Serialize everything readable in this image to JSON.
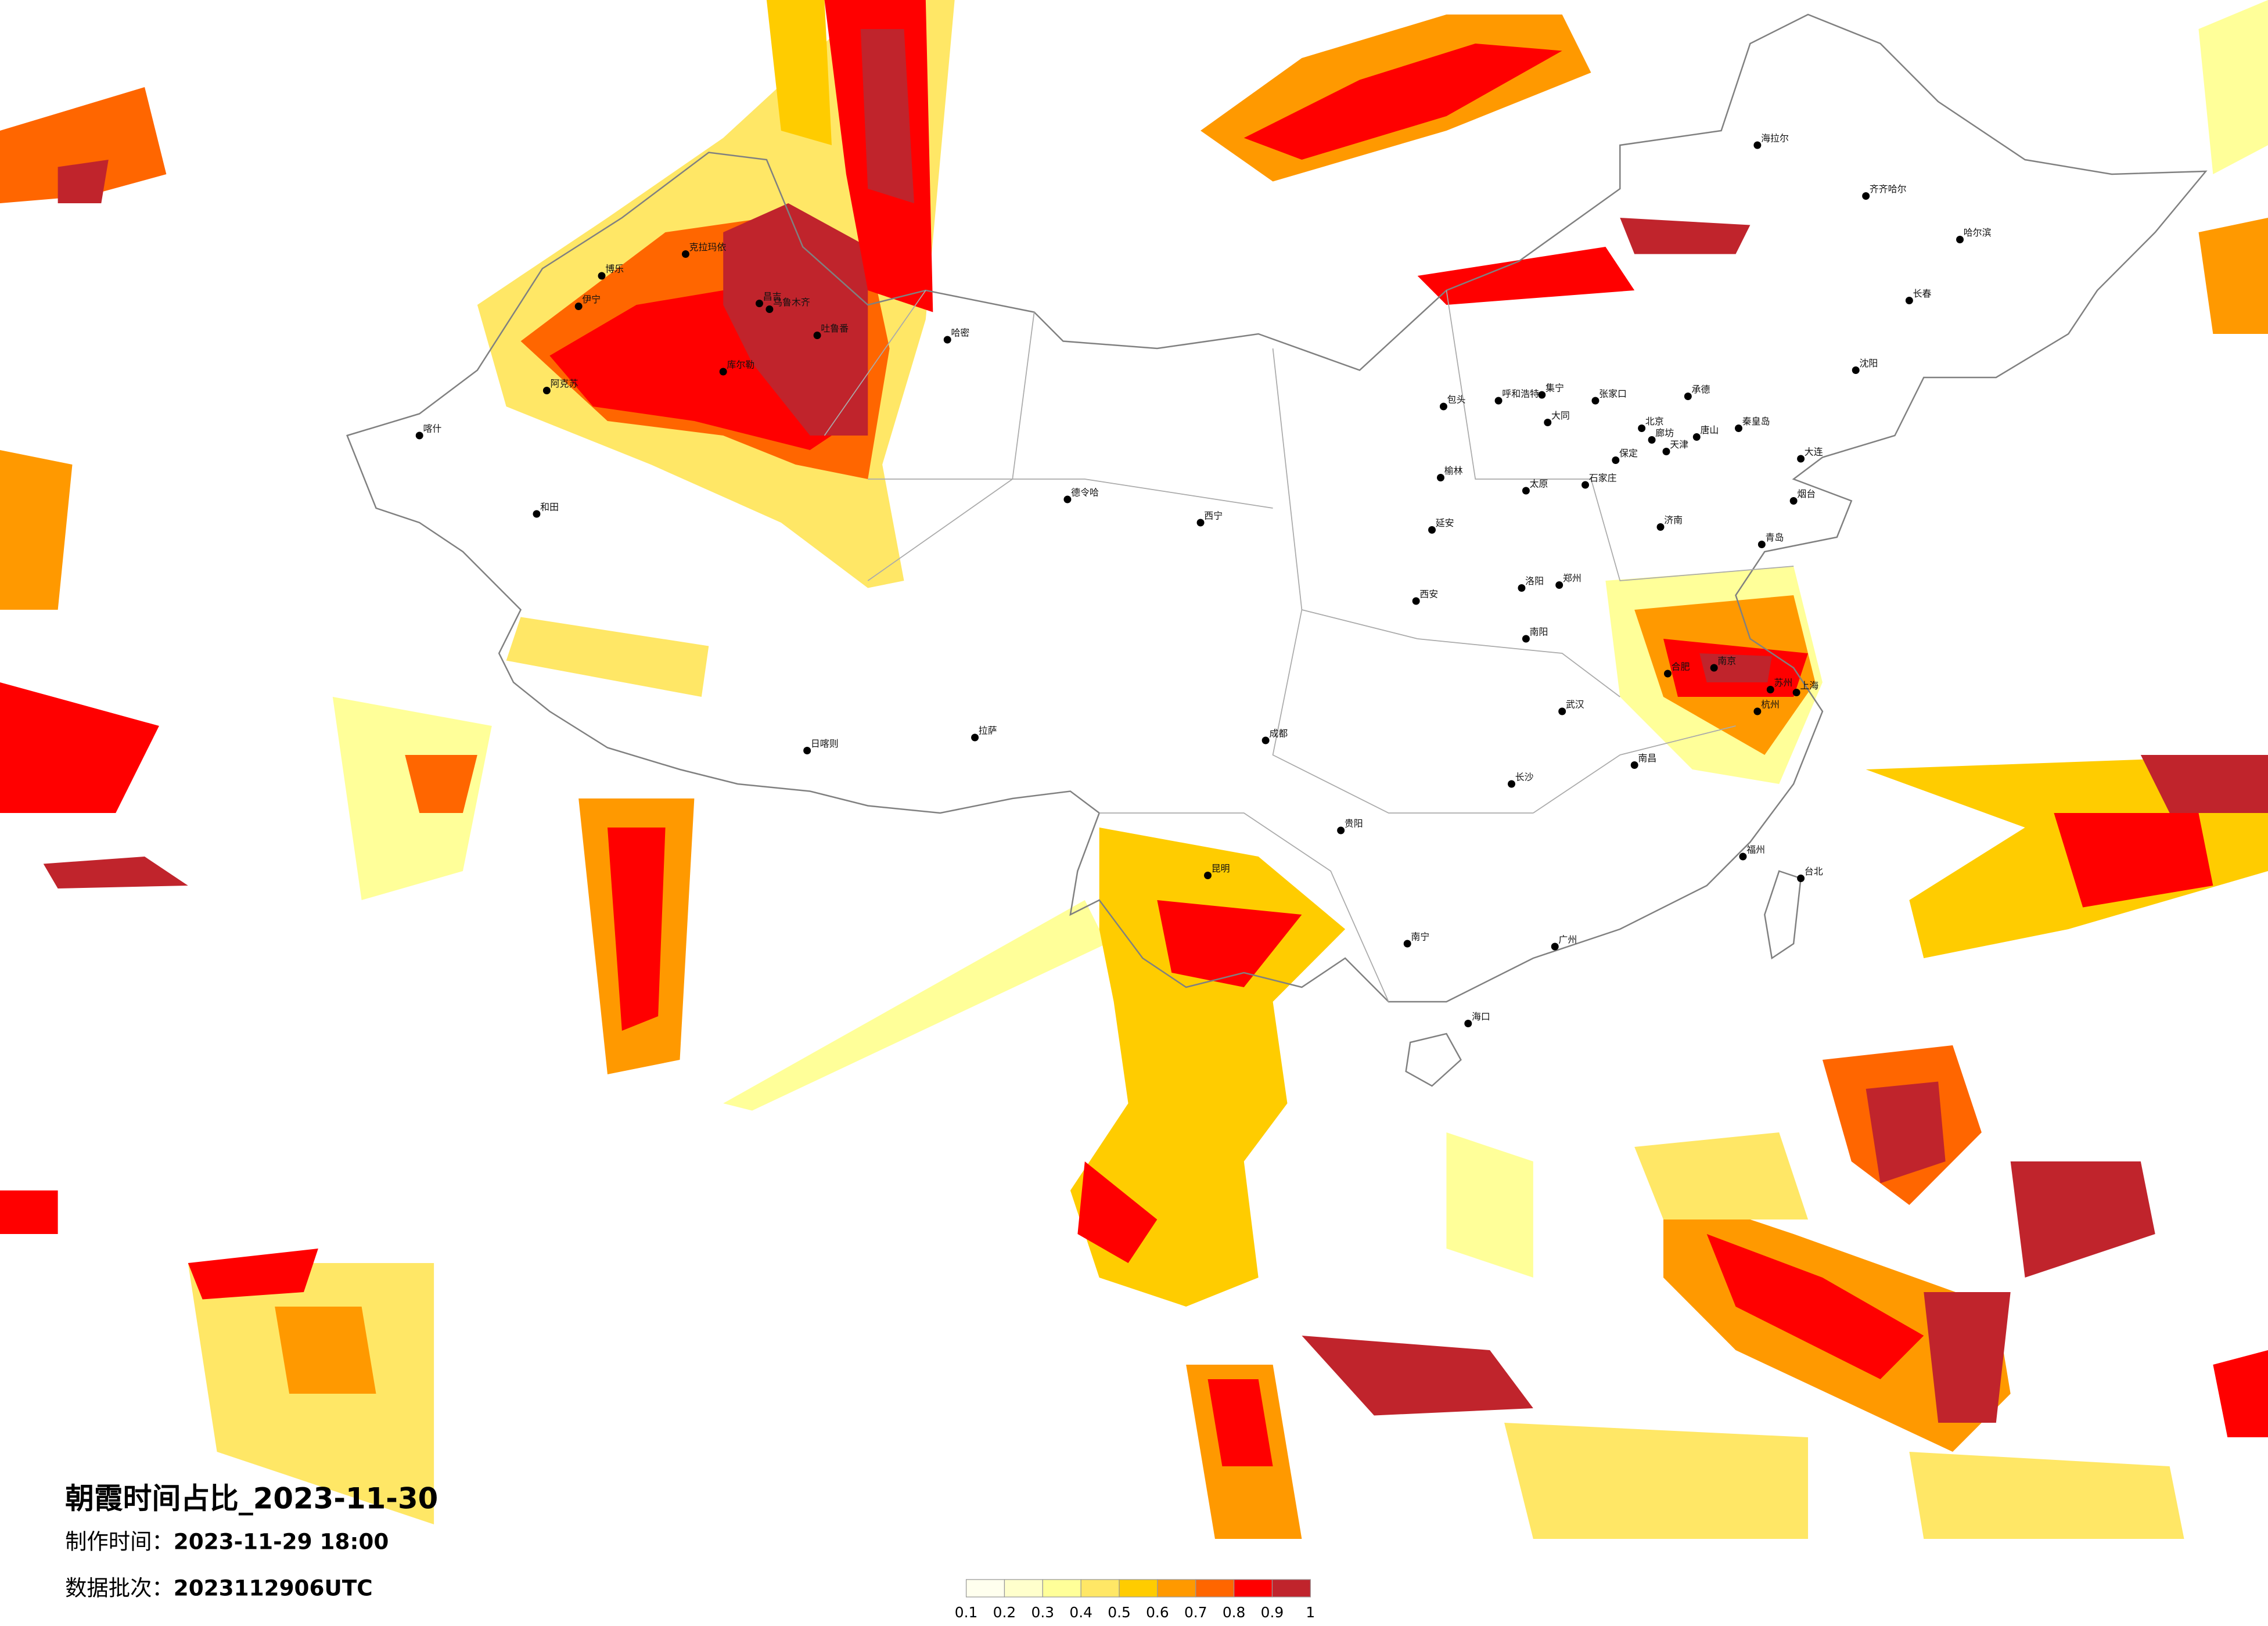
{
  "title": "朝霞时间占比_2023-11-30",
  "production_time": {
    "label": "制作时间：",
    "value": "2023-11-29 18:00"
  },
  "data_batch": {
    "label": "数据批次：",
    "value": "2023112906UTC"
  },
  "legend": {
    "colors": [
      "#FFFFEE",
      "#FFFFCC",
      "#FFFF99",
      "#FFE766",
      "#FFCC00",
      "#FF9900",
      "#FF6600",
      "#FF0000",
      "#C0242C"
    ],
    "labels": [
      "0.1",
      "0.2",
      "0.3",
      "0.4",
      "0.5",
      "0.6",
      "0.7",
      "0.8",
      "0.9",
      "1"
    ]
  },
  "map": {
    "border_color": "#808080",
    "city_marker_color": "#000000",
    "cities": [
      "克拉玛依",
      "博乐",
      "伊宁",
      "昌吉",
      "乌鲁木齐",
      "吐鲁番",
      "哈密",
      "库尔勒",
      "阿克苏",
      "和田",
      "喀什",
      "包头",
      "呼和浩特",
      "集宁",
      "张家口",
      "承德",
      "北京",
      "廊坊",
      "天津",
      "唐山",
      "秦皇岛",
      "保定",
      "石家庄",
      "大同",
      "太原",
      "济南",
      "青岛",
      "郑州",
      "洛阳",
      "西安",
      "合肥",
      "南京",
      "上海",
      "苏州",
      "大连",
      "沈阳",
      "延安",
      "榆林",
      "南阳",
      "烟台",
      "哈尔滨",
      "长春",
      "齐齐哈尔",
      "拉萨",
      "日喀则",
      "西宁",
      "德令哈",
      "成都",
      "贵阳",
      "昆明",
      "南宁",
      "广州",
      "福州",
      "杭州",
      "武汉",
      "长沙",
      "南昌",
      "海口",
      "台北",
      "海拉尔"
    ]
  }
}
